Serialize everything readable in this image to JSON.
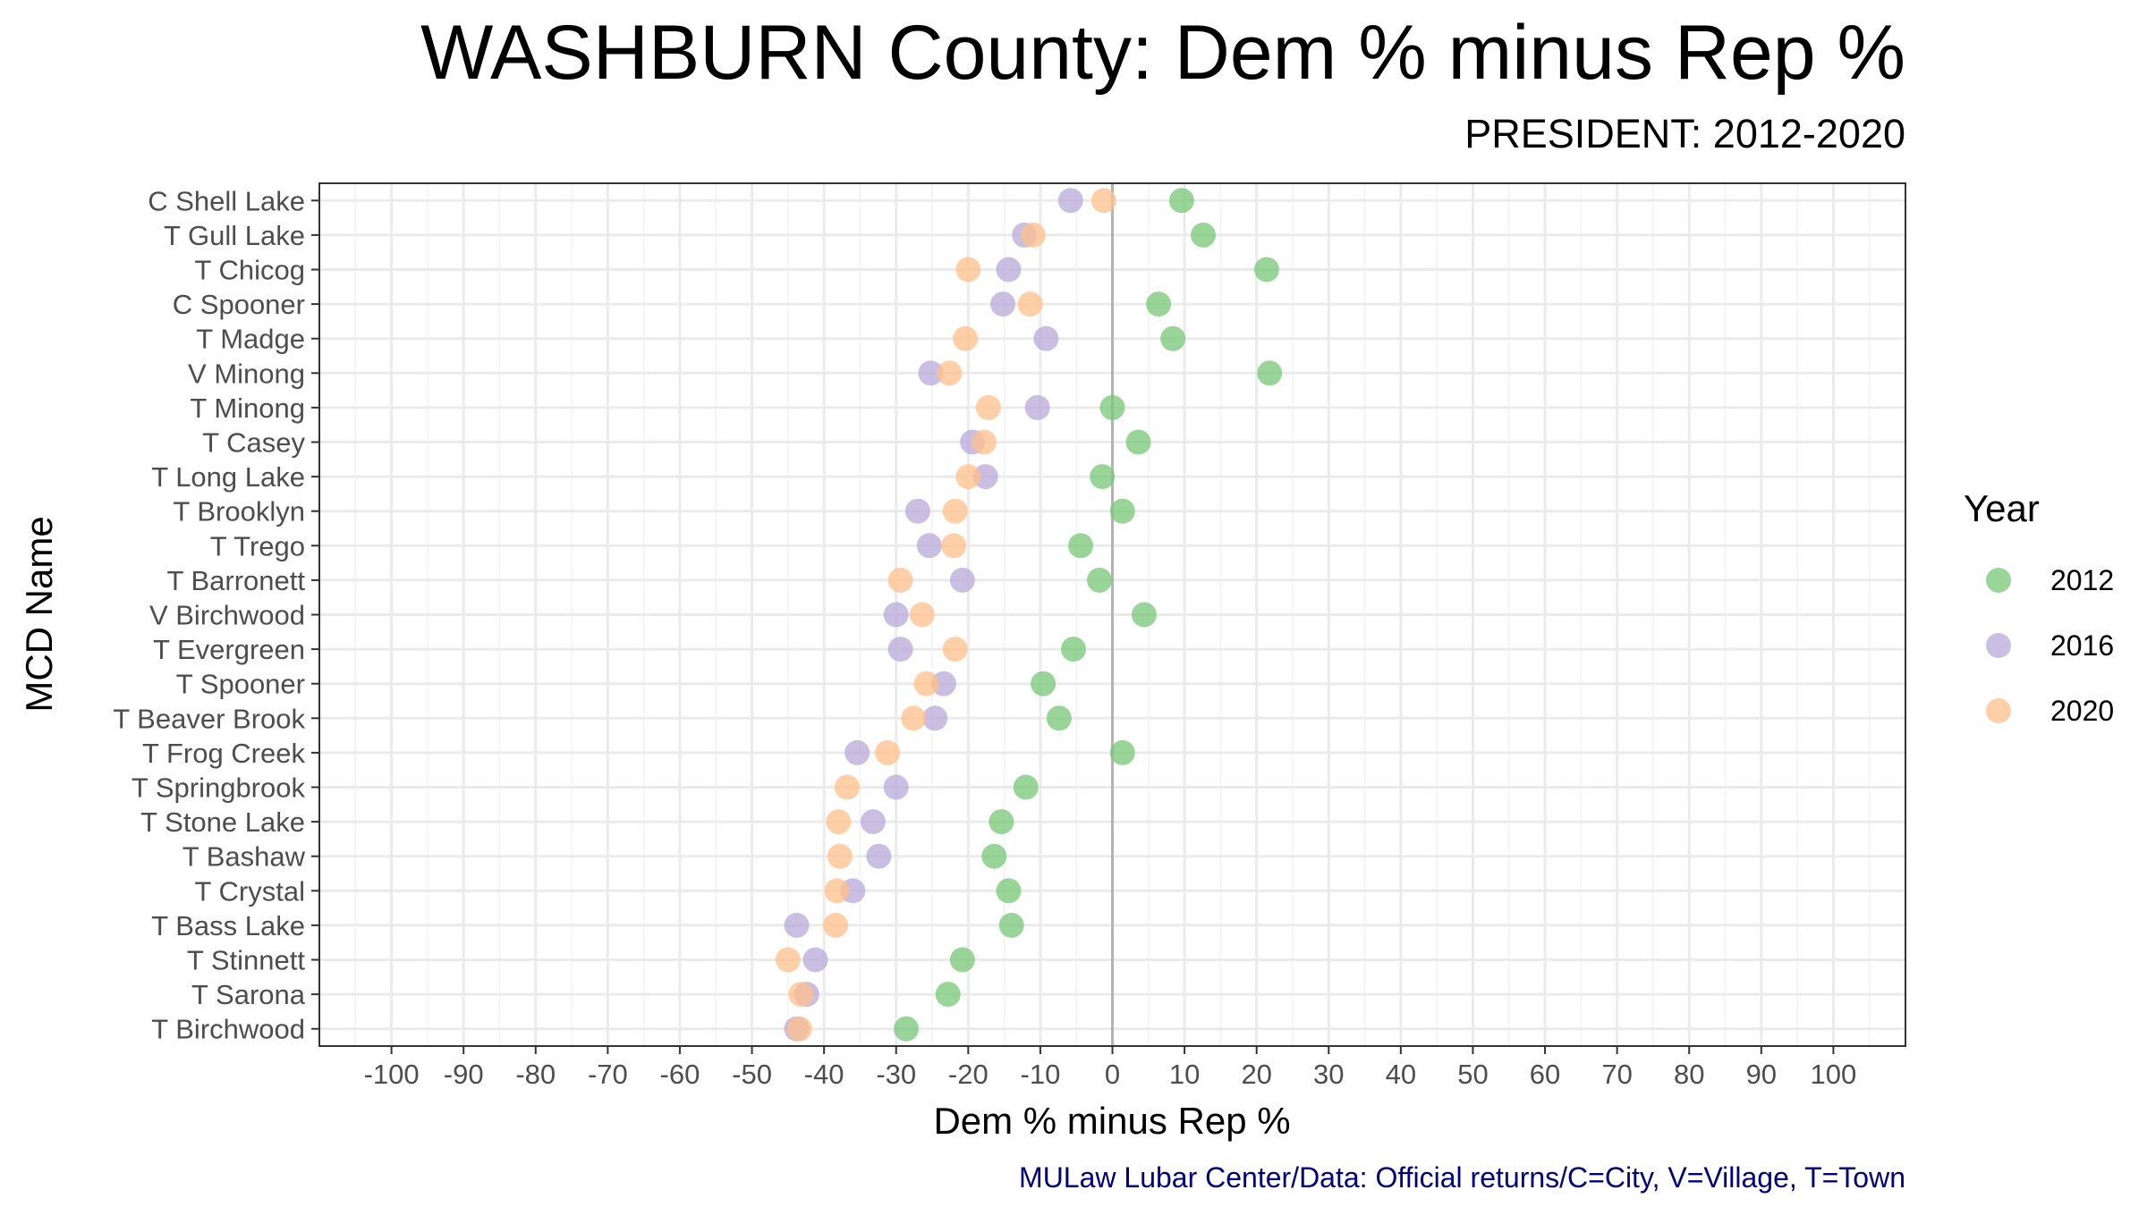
{
  "title": "WASHBURN County: Dem % minus Rep %",
  "subtitle": "PRESIDENT: 2012-2020",
  "caption": "MULaw Lubar Center/Data: Official returns/C=City, V=Village, T=Town",
  "chart_data": {
    "type": "scatter",
    "xlabel": "Dem % minus Rep %",
    "ylabel": "MCD Name",
    "xlim": [
      -110,
      110
    ],
    "x_ticks": [
      -100,
      -90,
      -80,
      -70,
      -60,
      -50,
      -40,
      -30,
      -20,
      -10,
      0,
      10,
      20,
      30,
      40,
      50,
      60,
      70,
      80,
      90,
      100
    ],
    "grid": true,
    "reference_line": 0,
    "legend": {
      "title": "Year",
      "placement": "right"
    },
    "categories": [
      "C Shell Lake",
      "T Gull Lake",
      "T Chicog",
      "C Spooner",
      "T Madge",
      "V Minong",
      "T Minong",
      "T Casey",
      "T Long Lake",
      "T Brooklyn",
      "T Trego",
      "T Barronett",
      "V Birchwood",
      "T Evergreen",
      "T Spooner",
      "T Beaver Brook",
      "T Frog Creek",
      "T Springbrook",
      "T Stone Lake",
      "T Bashaw",
      "T Crystal",
      "T Bass Lake",
      "T Stinnett",
      "T Sarona",
      "T Birchwood"
    ],
    "series": [
      {
        "name": "2012",
        "color": "#77c777",
        "values": [
          9.6,
          12.6,
          21.4,
          6.4,
          8.4,
          21.8,
          0.0,
          3.6,
          -1.4,
          1.4,
          -4.4,
          -1.8,
          4.4,
          -5.4,
          -9.6,
          -7.4,
          1.4,
          -12.0,
          -15.4,
          -16.4,
          -14.4,
          -14.0,
          -20.8,
          -22.8,
          -28.6
        ]
      },
      {
        "name": "2016",
        "color": "#b8a9d8",
        "values": [
          -5.8,
          -12.2,
          -14.4,
          -15.2,
          -9.2,
          -25.2,
          -10.4,
          -19.4,
          -17.6,
          -27.0,
          -25.4,
          -20.8,
          -30.0,
          -29.4,
          -23.4,
          -24.6,
          -35.4,
          -30.0,
          -33.2,
          -32.4,
          -36.0,
          -43.8,
          -41.2,
          -42.4,
          -43.8
        ]
      },
      {
        "name": "2020",
        "color": "#ffc08a",
        "values": [
          -1.2,
          -11.0,
          -20.0,
          -11.4,
          -20.4,
          -22.6,
          -17.2,
          -17.8,
          -20.0,
          -21.8,
          -22.0,
          -29.4,
          -26.4,
          -21.8,
          -25.8,
          -27.6,
          -31.2,
          -36.8,
          -38.0,
          -37.8,
          -38.2,
          -38.4,
          -45.0,
          -43.2,
          -43.4
        ]
      }
    ]
  }
}
